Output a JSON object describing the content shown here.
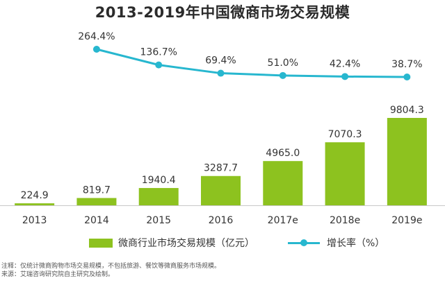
{
  "colors": {
    "bar": "#8dc21f",
    "line": "#27b7cf",
    "axis": "#c8c8c8"
  },
  "legend": {
    "bar_label": "微商行业市场交易规模（亿元）",
    "line_label": "增长率（%）"
  },
  "notes": {
    "line1": "注释：仅统计微商购物市场交易规模，不包括旅游、餐饮等微商服务市场规模。",
    "line2": "来源：艾瑞咨询研究院自主研究及绘制。"
  },
  "chart_data": {
    "type": "bar",
    "title": "2013-2019年中国微商市场交易规模",
    "categories": [
      "2013",
      "2014",
      "2015",
      "2016",
      "2017e",
      "2018e",
      "2019e"
    ],
    "series": [
      {
        "name": "微商行业市场交易规模（亿元）",
        "type": "bar",
        "values": [
          224.9,
          819.7,
          1940.4,
          3287.7,
          4965.0,
          7070.3,
          9804.3
        ],
        "labels": [
          "224.9",
          "819.7",
          "1940.4",
          "3287.7",
          "4965.0",
          "7070.3",
          "9804.3"
        ]
      },
      {
        "name": "增长率（%）",
        "type": "line",
        "x": [
          "2014",
          "2015",
          "2016",
          "2017e",
          "2018e",
          "2019e"
        ],
        "values": [
          264.4,
          136.7,
          69.4,
          51.0,
          42.4,
          38.7
        ],
        "labels": [
          "264.4%",
          "136.7%",
          "69.4%",
          "51.0%",
          "42.4%",
          "38.7%"
        ]
      }
    ],
    "grid": false,
    "legend_position": "bottom"
  }
}
